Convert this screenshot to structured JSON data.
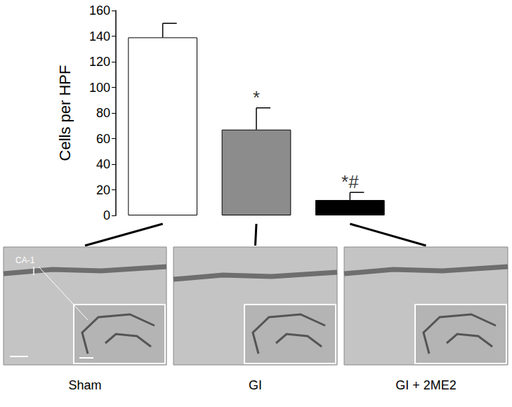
{
  "chart_data": {
    "type": "bar",
    "y_label": "Cells per HPF",
    "categories": [
      "Sham",
      "GI",
      "GI + 2ME2"
    ],
    "values": [
      139,
      67,
      12
    ],
    "errors": [
      11,
      17,
      6
    ],
    "colors": [
      "#ffffff",
      "#8c8c8c",
      "#000000"
    ],
    "ylim": [
      0,
      160
    ],
    "yticks": [
      0,
      20,
      40,
      60,
      80,
      100,
      120,
      140,
      160
    ],
    "grid": false,
    "annotations": [
      {
        "category": "GI",
        "text": "*"
      },
      {
        "category": "GI + 2ME2",
        "text": "*#"
      }
    ],
    "image_label": "CA-1"
  }
}
